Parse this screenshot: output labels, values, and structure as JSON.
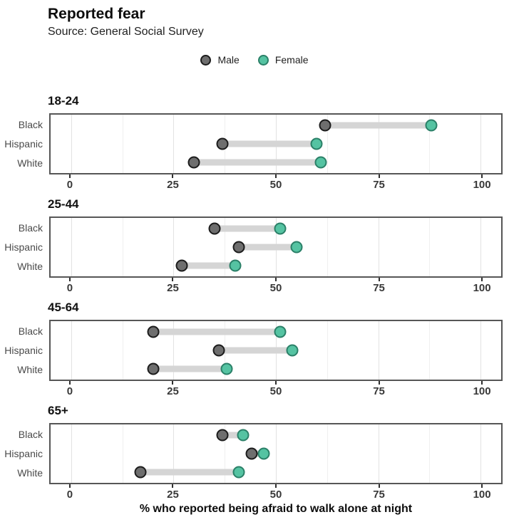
{
  "chart_data": {
    "type": "dumbbell",
    "title": "Reported fear",
    "subtitle": "Source: General Social Survey",
    "xlabel": "% who reported being afraid to walk alone at night",
    "x_ticks": [
      0,
      25,
      50,
      75,
      100
    ],
    "x_minor_gridlines": [
      12.5,
      37.5,
      62.5,
      87.5
    ],
    "xlim": [
      -5,
      105
    ],
    "grid": "vertical-only",
    "legend_position": "top-center",
    "legend": [
      {
        "name": "Male",
        "fill": "#6e6e6e",
        "stroke": "#1c1c1c"
      },
      {
        "name": "Female",
        "fill": "#55c3a2",
        "stroke": "#2b8068"
      }
    ],
    "colors": {
      "connector": "#d5d5d5",
      "male_fill": "#6e6e6e",
      "male_stroke": "#1c1c1c",
      "female_fill": "#55c3a2",
      "female_stroke": "#2b8068",
      "panel_border": "#565656"
    },
    "categories": [
      "Black",
      "Hispanic",
      "White"
    ],
    "facets": [
      {
        "age_group": "18-24",
        "rows": [
          {
            "group": "Black",
            "male": 62,
            "female": 88
          },
          {
            "group": "Hispanic",
            "male": 37,
            "female": 60
          },
          {
            "group": "White",
            "male": 30,
            "female": 61
          }
        ]
      },
      {
        "age_group": "25-44",
        "rows": [
          {
            "group": "Black",
            "male": 35,
            "female": 51
          },
          {
            "group": "Hispanic",
            "male": 41,
            "female": 55
          },
          {
            "group": "White",
            "male": 27,
            "female": 40
          }
        ]
      },
      {
        "age_group": "45-64",
        "rows": [
          {
            "group": "Black",
            "male": 20,
            "female": 51
          },
          {
            "group": "Hispanic",
            "male": 36,
            "female": 54
          },
          {
            "group": "White",
            "male": 20,
            "female": 38
          }
        ]
      },
      {
        "age_group": "65+",
        "rows": [
          {
            "group": "Black",
            "male": 37,
            "female": 42
          },
          {
            "group": "Hispanic",
            "male": 44,
            "female": 47
          },
          {
            "group": "White",
            "male": 17,
            "female": 41
          }
        ]
      }
    ]
  }
}
